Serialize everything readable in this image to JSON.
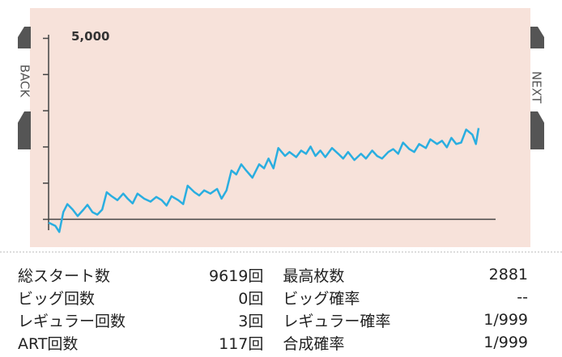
{
  "chart_data": {
    "type": "line",
    "nav": {
      "back": "BACK",
      "next": "NEXT"
    },
    "xlim": [
      0,
      10000
    ],
    "ylim": [
      -300,
      5100
    ],
    "yticks": [
      {
        "value": 0,
        "label": null
      },
      {
        "value": 1000,
        "label": null
      },
      {
        "value": 2000,
        "label": null
      },
      {
        "value": 3000,
        "label": null
      },
      {
        "value": 4000,
        "label": null
      },
      {
        "value": 5000,
        "label": "5,000"
      }
    ],
    "background": "#f7e2da",
    "color": "#2aaee0",
    "x": [
      0,
      150,
      240,
      330,
      420,
      540,
      650,
      780,
      870,
      980,
      1090,
      1200,
      1300,
      1410,
      1540,
      1670,
      1770,
      1880,
      1990,
      2140,
      2280,
      2410,
      2530,
      2640,
      2750,
      2900,
      3010,
      3110,
      3260,
      3370,
      3480,
      3620,
      3770,
      3870,
      3980,
      4090,
      4200,
      4310,
      4420,
      4560,
      4710,
      4820,
      4920,
      5030,
      5140,
      5290,
      5390,
      5540,
      5650,
      5760,
      5860,
      5970,
      6080,
      6190,
      6340,
      6480,
      6590,
      6700,
      6840,
      6990,
      7100,
      7240,
      7350,
      7460,
      7600,
      7710,
      7820,
      7930,
      8070,
      8180,
      8290,
      8440,
      8540,
      8690,
      8800,
      8910,
      9010,
      9120,
      9230,
      9340,
      9480,
      9560,
      9619
    ],
    "values": [
      -90,
      -180,
      -350,
      200,
      420,
      270,
      90,
      270,
      400,
      200,
      130,
      270,
      750,
      640,
      530,
      710,
      570,
      440,
      710,
      570,
      490,
      620,
      530,
      380,
      640,
      530,
      420,
      930,
      750,
      660,
      800,
      710,
      840,
      570,
      800,
      1350,
      1240,
      1520,
      1350,
      1150,
      1520,
      1410,
      1680,
      1410,
      1970,
      1750,
      1860,
      1720,
      1900,
      1810,
      2010,
      1750,
      1900,
      1720,
      1970,
      1810,
      1680,
      1860,
      1640,
      1810,
      1680,
      1900,
      1750,
      1680,
      1860,
      1940,
      1810,
      2120,
      1940,
      1860,
      2080,
      1970,
      2210,
      2080,
      2170,
      1990,
      2250,
      2080,
      2120,
      2480,
      2340,
      2080,
      2520
    ]
  },
  "table": {
    "rows": [
      [
        "総スタート数",
        "9619回",
        "最高枚数",
        "2881"
      ],
      [
        "ビッグ回数",
        "0回",
        "ビッグ確率",
        "--"
      ],
      [
        "レギュラー回数",
        "3回",
        "レギュラー確率",
        "1/999"
      ],
      [
        "ART回数",
        "117回",
        "合成確率",
        "1/999"
      ]
    ]
  }
}
